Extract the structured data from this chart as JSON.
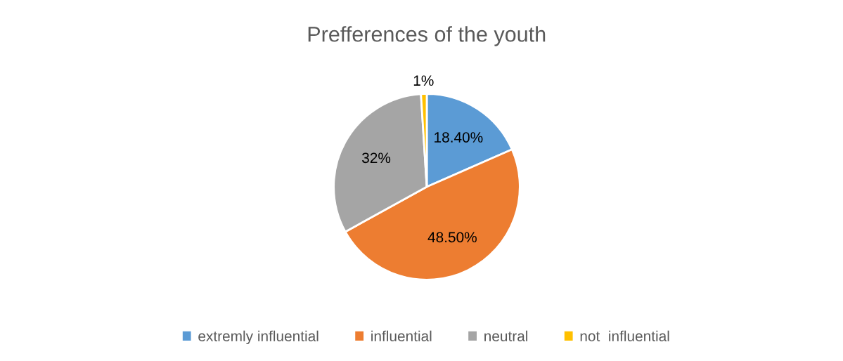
{
  "chart_data": {
    "type": "pie",
    "title": "Prefferences of the youth",
    "categories": [
      "extremly influential",
      "influential",
      "neutral",
      "not  influential"
    ],
    "values": [
      18.4,
      48.5,
      32,
      1
    ],
    "colors": [
      "#5b9bd5",
      "#ed7d31",
      "#a5a5a5",
      "#ffc000"
    ],
    "value_labels": [
      "18.40%",
      "48.50%",
      "32%",
      "1%"
    ],
    "legend": "bottom"
  }
}
